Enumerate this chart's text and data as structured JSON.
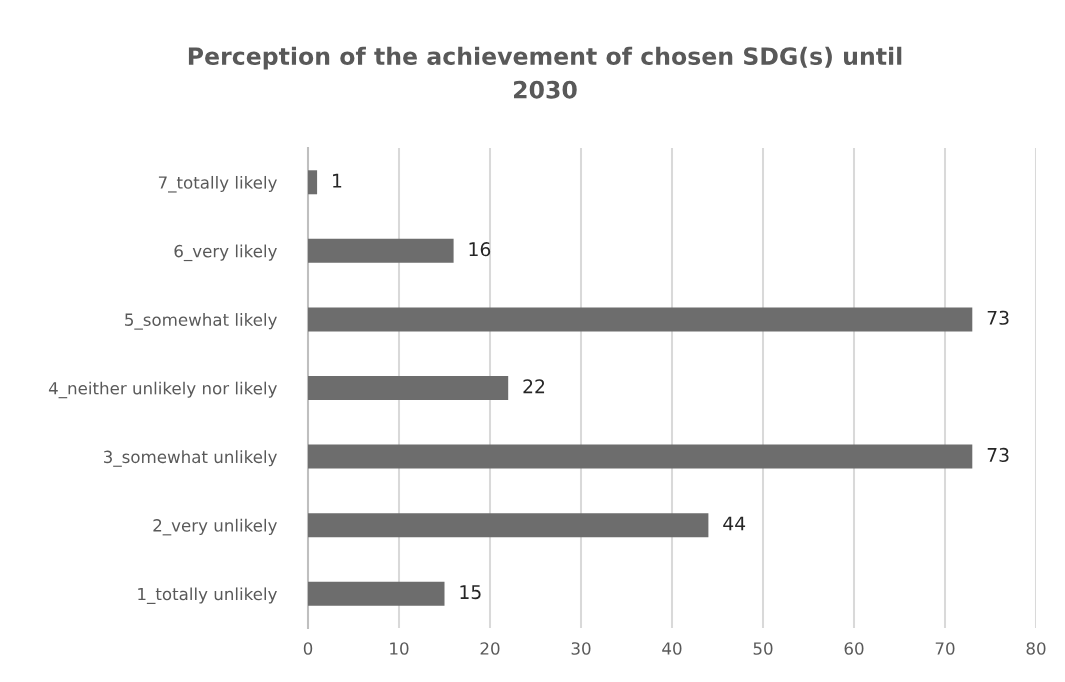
{
  "chart_data": {
    "type": "bar",
    "orientation": "horizontal",
    "title": "Perception of the achievement of chosen SDG(s) until\n2030",
    "categories": [
      "7_totally likely",
      "6_very likely",
      "5_somewhat likely",
      "4_neither unlikely nor likely",
      "3_somewhat unlikely",
      "2_very unlikely",
      "1_totally unlikely"
    ],
    "values": [
      1,
      16,
      73,
      22,
      73,
      44,
      15
    ],
    "color": "#6d6d6d",
    "xlim": [
      0,
      80
    ],
    "xticks": [
      0,
      10,
      20,
      30,
      40,
      50,
      60,
      70,
      80
    ],
    "grid": "x",
    "data_labels": true,
    "legend": false
  }
}
